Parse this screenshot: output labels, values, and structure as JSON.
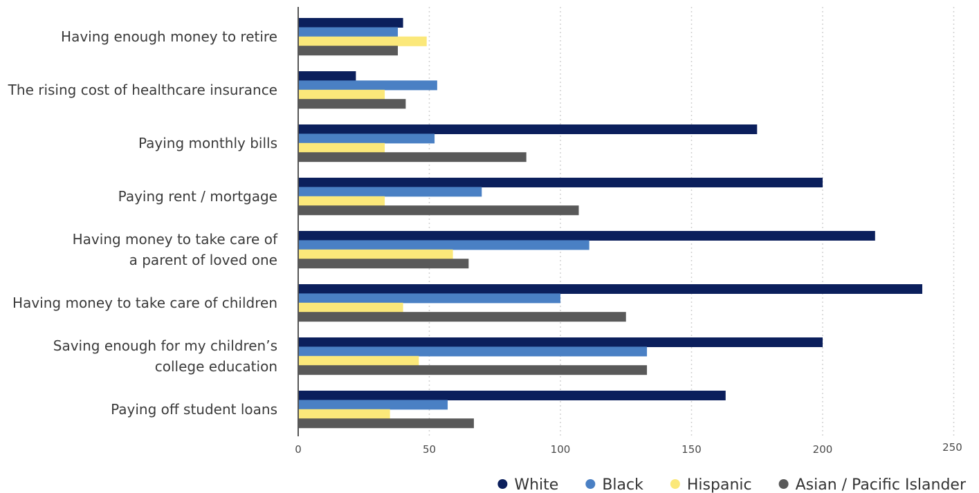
{
  "chart_data": {
    "type": "bar",
    "orientation": "horizontal",
    "title": "",
    "xlabel": "",
    "ylabel": "",
    "xlim": [
      0,
      250
    ],
    "x_ticks": [
      "0",
      "50",
      "100",
      "150",
      "200",
      "250"
    ],
    "grid": "vertical-dotted",
    "legend_position": "bottom-right",
    "categories": [
      [
        "Having enough money to retire"
      ],
      [
        "The rising cost of healthcare insurance"
      ],
      [
        "Paying monthly bills"
      ],
      [
        "Paying rent / mortgage"
      ],
      [
        "Having money to take care of",
        "a parent of loved one"
      ],
      [
        "Having money to take care of children"
      ],
      [
        "Saving enough for my children’s",
        "college education"
      ],
      [
        "Paying off student loans"
      ]
    ],
    "series": [
      {
        "name": "White",
        "color": "#0b1f5c",
        "values": [
          40,
          22,
          175,
          200,
          220,
          238,
          200,
          163
        ]
      },
      {
        "name": "Black",
        "color": "#4a80c4",
        "values": [
          38,
          53,
          52,
          70,
          111,
          100,
          133,
          57
        ]
      },
      {
        "name": "Hispanic",
        "color": "#fbe87a",
        "values": [
          49,
          33,
          33,
          33,
          59,
          40,
          46,
          35
        ]
      },
      {
        "name": "Asian / Pacific Islander",
        "color": "#595959",
        "values": [
          38,
          41,
          87,
          107,
          65,
          125,
          133,
          67
        ]
      }
    ]
  }
}
